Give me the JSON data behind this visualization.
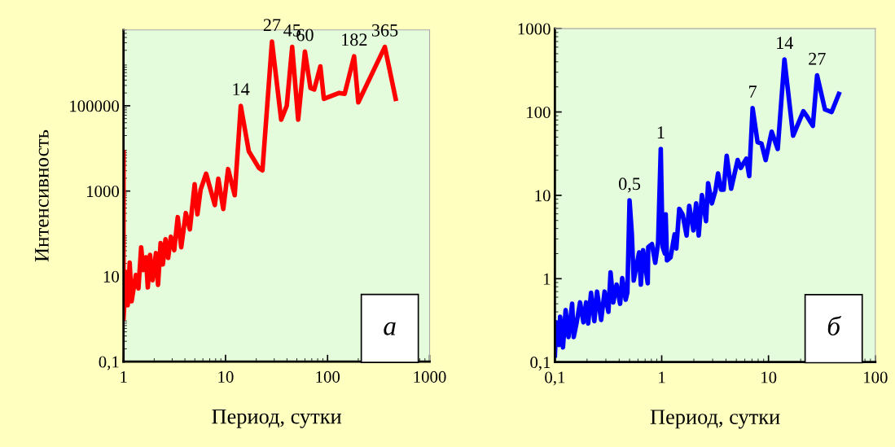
{
  "chart_data": [
    {
      "type": "line",
      "xlabel": "Период, сутки",
      "ylabel": "Интенсивность",
      "log": "xy",
      "grid": false,
      "legend": false,
      "marker": "none",
      "line_style": "solid",
      "xlim": [
        1,
        1000
      ],
      "xticks": [
        1,
        10,
        100,
        1000
      ],
      "ylim": [
        0.1,
        6000000
      ],
      "yticks": [
        {
          "value": 0.1,
          "label": "0,1"
        },
        10,
        1000,
        100000
      ],
      "series": [
        {
          "color": "#ff0000",
          "x": [
            1,
            1,
            1.06,
            1.1,
            1.15,
            1.2,
            1.32,
            1.4,
            1.49,
            1.56,
            1.66,
            1.73,
            1.82,
            1.93,
            2.08,
            2.18,
            2.31,
            2.43,
            2.58,
            2.74,
            2.91,
            3.14,
            3.4,
            3.68,
            4.08,
            4.47,
            4.98,
            5.3,
            5.7,
            6.45,
            7.85,
            8.5,
            9.5,
            10.6,
            12.3,
            14.1,
            16.9,
            21.2,
            23,
            28.5,
            35.1,
            39.8,
            45,
            51.5,
            60,
            68,
            74,
            85,
            92,
            130,
            147,
            182,
            200,
            364,
            465
          ],
          "values": [
            8000,
            1,
            12.6,
            2.1,
            21,
            2.6,
            10.7,
            5.2,
            48,
            14,
            28,
            5.5,
            32,
            8.1,
            35,
            6.3,
            60,
            19,
            74,
            27,
            85,
            41,
            245,
            48,
            305,
            126,
            1450,
            285,
            1080,
            2560,
            470,
            1950,
            380,
            3280,
            800,
            100000,
            8600,
            3500,
            3060,
            3200000,
            47000,
            100000,
            2400000,
            47000,
            1870000,
            260000,
            240000,
            840000,
            145000,
            200000,
            190000,
            1450000,
            120000,
            2400000,
            145000
          ]
        }
      ],
      "annotations": [
        {
          "text": "14",
          "x": 14.1,
          "y": 100000
        },
        {
          "text": "27",
          "x": 28.5,
          "y": 3200000
        },
        {
          "text": "45",
          "x": 45,
          "y": 2400000
        },
        {
          "text": "60",
          "x": 60,
          "y": 1870000
        },
        {
          "text": "182",
          "x": 182,
          "y": 1450000
        },
        {
          "text": "365",
          "x": 364,
          "y": 2400000
        },
        "а"
      ]
    },
    {
      "type": "line",
      "xlabel": "Период, сутки",
      "log": "xy",
      "grid": false,
      "legend": false,
      "marker": "none",
      "line_style": "solid",
      "xlim": [
        0.1,
        100
      ],
      "xticks": [
        {
          "value": 0.1,
          "label": "0,1"
        },
        1,
        10,
        100
      ],
      "ylim": [
        0.1,
        1000
      ],
      "yticks": [
        {
          "value": 0.1,
          "label": "0,1"
        },
        1,
        10,
        100,
        1000
      ],
      "series": [
        {
          "color": "#0000ff",
          "x": [
            0.1,
            0.103,
            0.109,
            0.112,
            0.119,
            0.126,
            0.134,
            0.145,
            0.15,
            0.16,
            0.172,
            0.185,
            0.196,
            0.205,
            0.218,
            0.234,
            0.248,
            0.271,
            0.292,
            0.317,
            0.332,
            0.352,
            0.378,
            0.408,
            0.427,
            0.46,
            0.477,
            0.5,
            0.525,
            0.547,
            0.614,
            0.638,
            0.67,
            0.74,
            0.748,
            0.81,
            0.87,
            0.925,
            0.98,
            1.02,
            1.07,
            1.09,
            1.12,
            1.21,
            1.32,
            1.37,
            1.46,
            1.57,
            1.71,
            1.81,
            1.98,
            2.1,
            2.22,
            2.38,
            2.6,
            2.72,
            2.95,
            3.18,
            3.37,
            3.6,
            3.8,
            4.06,
            4.47,
            5.14,
            5.5,
            6.2,
            6.6,
            7.1,
            7.9,
            8.6,
            9.4,
            10.7,
            12.2,
            14.1,
            17,
            21.2,
            23,
            26,
            28.5,
            33.8,
            39,
            45.6
          ],
          "values": [
            0.12,
            0.3,
            0.16,
            0.35,
            0.15,
            0.42,
            0.2,
            0.5,
            0.2,
            0.3,
            0.52,
            0.3,
            0.52,
            0.29,
            0.68,
            0.31,
            0.7,
            0.32,
            0.7,
            0.4,
            1.19,
            0.52,
            0.85,
            0.5,
            1.02,
            0.56,
            0.68,
            8.7,
            3.5,
            0.95,
            2.07,
            0.85,
            2.2,
            0.88,
            2.4,
            2.6,
            1.55,
            2.7,
            36,
            2.4,
            2.0,
            5.9,
            1.66,
            1.8,
            3.4,
            2.3,
            6.9,
            5.9,
            3.3,
            7.5,
            3.8,
            8.0,
            3.3,
            10.1,
            4.9,
            14,
            8,
            11.3,
            18.3,
            11.7,
            11.7,
            29.8,
            12,
            26.5,
            21.3,
            27.5,
            17,
            111,
            43.4,
            41.8,
            26.5,
            58,
            36,
            427,
            52,
            102,
            88,
            68,
            275,
            107,
            100,
            165
          ]
        }
      ],
      "annotations": [
        {
          "text": "0,5",
          "x": 0.5,
          "y": 8.7
        },
        {
          "text": "1",
          "x": 0.98,
          "y": 36
        },
        {
          "text": "7",
          "x": 7.1,
          "y": 111
        },
        {
          "text": "14",
          "x": 14.1,
          "y": 427
        },
        {
          "text": "27",
          "x": 28.5,
          "y": 275
        },
        "б"
      ]
    }
  ]
}
